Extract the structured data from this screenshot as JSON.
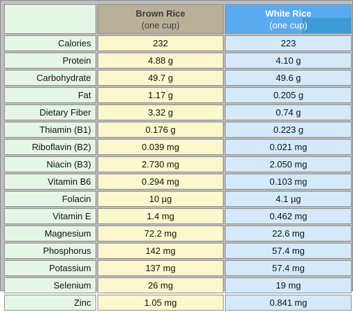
{
  "header": {
    "brown": {
      "name": "Brown Rice",
      "sub": "(one cup)"
    },
    "white": {
      "name": "White Rice",
      "sub": "(one cup)"
    }
  },
  "rows": [
    {
      "label": "Calories",
      "brown": "232",
      "white": "223"
    },
    {
      "label": "Protein",
      "brown": "4.88 g",
      "white": "4.10 g"
    },
    {
      "label": "Carbohydrate",
      "brown": "49.7 g",
      "white": "49.6 g"
    },
    {
      "label": "Fat",
      "brown": "1.17 g",
      "white": "0.205 g"
    },
    {
      "label": "Dietary Fiber",
      "brown": "3.32 g",
      "white": "0.74 g"
    },
    {
      "label": "Thiamin (B1)",
      "brown": "0.176 g",
      "white": "0.223 g"
    },
    {
      "label": "Riboflavin (B2)",
      "brown": "0.039 mg",
      "white": "0.021 mg"
    },
    {
      "label": "Niacin (B3)",
      "brown": "2.730 mg",
      "white": "2.050 mg"
    },
    {
      "label": "Vitamin B6",
      "brown": "0.294 mg",
      "white": "0.103 mg"
    },
    {
      "label": "Folacin",
      "brown": "10 µg",
      "white": "4.1 µg"
    },
    {
      "label": "Vitamin E",
      "brown": "1.4 mg",
      "white": "0.462 mg"
    },
    {
      "label": "Magnesium",
      "brown": "72.2 mg",
      "white": "22.6 mg"
    },
    {
      "label": "Phosphorus",
      "brown": "142 mg",
      "white": "57.4 mg"
    },
    {
      "label": "Potassium",
      "brown": "137 mg",
      "white": "57.4 mg"
    },
    {
      "label": "Selenium",
      "brown": "26 mg",
      "white": "19 mg"
    },
    {
      "label": "Zinc",
      "brown": "1.05 mg",
      "white": "0.841 mg"
    }
  ],
  "colors": {
    "label_bg": "#e6f6e6",
    "brown_header_bg": "#b9b098",
    "white_header_bg": "#5aaaf0",
    "brown_cell_bg": "#faf8cc",
    "white_cell_bg": "#d4eafa"
  }
}
